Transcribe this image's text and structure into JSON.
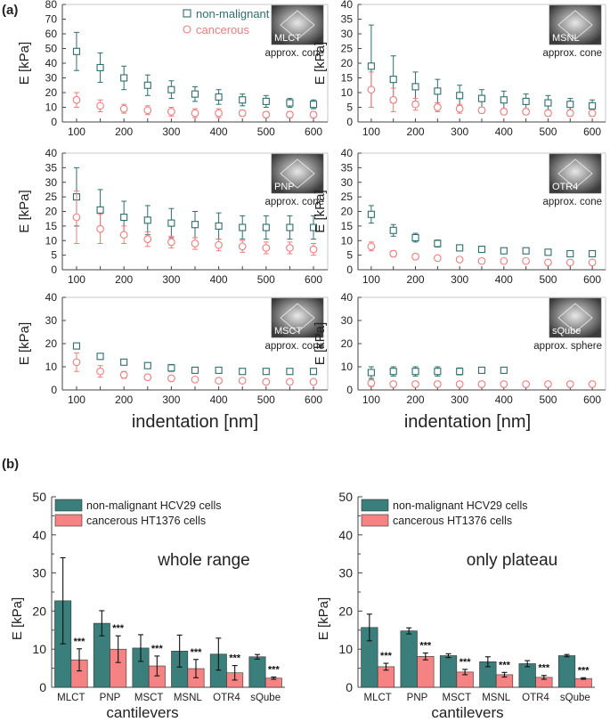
{
  "figure": {
    "label_a": "(a)",
    "label_b": "(b)",
    "xlabel_a": "indentation [nm]",
    "xlabel_b": "cantilevers",
    "ylabel": "E [kPa]",
    "legend_a": [
      "non-malignant",
      "cancerous"
    ],
    "legend_b": [
      "non-malignant HCV29 cells",
      "cancerous HT1376 cells"
    ],
    "sig_label": "***"
  },
  "colors": {
    "nonmalignant": "#2e6e6e",
    "cancerous": "#f07c7c",
    "bar_nonmalignant": "#3a7f7b",
    "bar_cancerous": "#f58383",
    "axis": "#444444",
    "text": "#222222"
  },
  "chart_data": [
    {
      "type": "scatter",
      "id": "MLCT",
      "tip": "MLCT",
      "shape": "approx. cone",
      "x": [
        100,
        150,
        200,
        250,
        300,
        350,
        400,
        450,
        500,
        550,
        600
      ],
      "ylim": [
        0,
        80
      ],
      "yticks": [
        0,
        10,
        20,
        30,
        40,
        50,
        60,
        70,
        80
      ],
      "series": [
        {
          "name": "non-malignant",
          "values": [
            48,
            37,
            30,
            25,
            22,
            19,
            17,
            15,
            14,
            13,
            12
          ],
          "err": [
            13,
            10,
            8,
            7,
            6,
            5,
            5,
            4,
            4,
            3,
            3
          ]
        },
        {
          "name": "cancerous",
          "values": [
            15,
            11,
            9,
            8,
            7,
            6,
            6,
            6,
            5,
            5,
            5
          ],
          "err": [
            5,
            4,
            3,
            3,
            3,
            3,
            3,
            2,
            2,
            2,
            2
          ]
        }
      ]
    },
    {
      "type": "scatter",
      "id": "MSNL",
      "tip": "MSNL",
      "shape": "approx. cone",
      "x": [
        100,
        150,
        200,
        250,
        300,
        350,
        400,
        450,
        500,
        550,
        600
      ],
      "ylim": [
        0,
        40
      ],
      "yticks": [
        0,
        5,
        10,
        15,
        20,
        25,
        30,
        35,
        40
      ],
      "series": [
        {
          "name": "non-malignant",
          "values": [
            19,
            14.5,
            12,
            10.5,
            9,
            8,
            7.5,
            7,
            6.5,
            6,
            5.5
          ],
          "err": [
            14,
            8,
            5,
            4,
            3.5,
            3,
            3,
            2.5,
            2.5,
            2,
            2
          ]
        },
        {
          "name": "cancerous",
          "values": [
            11,
            7.5,
            6,
            5,
            4.5,
            4,
            3.5,
            3.5,
            3,
            3,
            3
          ],
          "err": [
            6,
            4,
            2,
            1.5,
            1.5,
            1,
            1,
            1,
            1,
            1,
            1
          ]
        }
      ]
    },
    {
      "type": "scatter",
      "id": "PNP",
      "tip": "PNP",
      "shape": "approx. cone",
      "x": [
        100,
        150,
        200,
        250,
        300,
        350,
        400,
        450,
        500,
        550,
        600
      ],
      "ylim": [
        0,
        40
      ],
      "yticks": [
        0,
        5,
        10,
        15,
        20,
        25,
        30,
        35,
        40
      ],
      "series": [
        {
          "name": "non-malignant",
          "values": [
            25,
            20.5,
            18,
            17,
            16,
            15.5,
            15,
            14.5,
            14.5,
            14.5,
            14.5
          ],
          "err": [
            10,
            7,
            5.5,
            5,
            5,
            4.5,
            4.5,
            4,
            4,
            4,
            4
          ]
        },
        {
          "name": "cancerous",
          "values": [
            18,
            14,
            12,
            10.5,
            9.5,
            9,
            8.5,
            8,
            7.5,
            7.5,
            7
          ],
          "err": [
            9,
            5,
            3,
            2.5,
            2,
            2,
            2,
            2,
            2,
            2,
            2
          ]
        }
      ]
    },
    {
      "type": "scatter",
      "id": "OTR4",
      "tip": "OTR4",
      "shape": "approx. cone",
      "x": [
        100,
        150,
        200,
        250,
        300,
        350,
        400,
        450,
        500,
        550,
        600
      ],
      "ylim": [
        0,
        40
      ],
      "yticks": [
        0,
        5,
        10,
        15,
        20,
        25,
        30,
        35,
        40
      ],
      "series": [
        {
          "name": "non-malignant",
          "values": [
            19,
            13.5,
            11,
            9,
            7.5,
            7,
            6.5,
            6.5,
            6,
            5.5,
            5.5
          ],
          "err": [
            3,
            2,
            1.5,
            1.2,
            1,
            1,
            0.8,
            0.8,
            0.7,
            0.7,
            0.7
          ]
        },
        {
          "name": "cancerous",
          "values": [
            8,
            5.5,
            4.5,
            4,
            3.5,
            3,
            3,
            3,
            2.5,
            2.5,
            2.5
          ],
          "err": [
            1.5,
            1,
            0.8,
            0.6,
            0.5,
            0.5,
            0.5,
            0.5,
            0.5,
            0.5,
            0.5
          ]
        }
      ]
    },
    {
      "type": "scatter",
      "id": "MSCT",
      "tip": "MSCT",
      "shape": "approx. cone",
      "x": [
        100,
        150,
        200,
        250,
        300,
        350,
        400,
        450,
        500,
        550,
        600
      ],
      "ylim": [
        0,
        40
      ],
      "yticks": [
        0,
        10,
        20,
        30,
        40
      ],
      "series": [
        {
          "name": "non-malignant",
          "values": [
            19,
            14.5,
            12,
            10.5,
            9.5,
            8.5,
            8.5,
            8,
            8,
            8,
            8
          ],
          "err": [
            0.8,
            0.7,
            0.7,
            0.6,
            1.5,
            0.5,
            0.5,
            0.5,
            0.5,
            0.5,
            0.5
          ]
        },
        {
          "name": "cancerous",
          "values": [
            12,
            8,
            6.5,
            5.5,
            5,
            4.5,
            4,
            4,
            3.5,
            3.5,
            3.5
          ],
          "err": [
            4,
            2.5,
            1.5,
            1.2,
            1,
            0.8,
            0.7,
            0.6,
            0.5,
            0.5,
            0.5
          ]
        }
      ]
    },
    {
      "type": "scatter",
      "id": "sQube",
      "tip": "sQube",
      "shape": "approx. sphere",
      "x": [
        100,
        150,
        200,
        250,
        300,
        350,
        400,
        450,
        500,
        550,
        600
      ],
      "ylim": [
        0,
        40
      ],
      "yticks": [
        0,
        10,
        20,
        30,
        40
      ],
      "series": [
        {
          "name": "non-malignant",
          "values": [
            7.5,
            8,
            8,
            8,
            8,
            8.5,
            8.5,
            null,
            null,
            null,
            null
          ],
          "err": [
            2.5,
            2,
            2,
            2,
            1.5,
            1,
            0.5,
            null,
            null,
            null,
            null
          ]
        },
        {
          "name": "cancerous",
          "values": [
            3,
            2.5,
            2.5,
            2.5,
            2.5,
            2.5,
            2.5,
            2.5,
            2.5,
            2.5,
            2.5
          ],
          "err": [
            1.5,
            1,
            0.8,
            0.7,
            0.6,
            0.5,
            0.5,
            0.5,
            0.5,
            0.5,
            0.5
          ]
        }
      ]
    },
    {
      "type": "bar",
      "id": "whole",
      "title": "whole range",
      "categories": [
        "MLCT",
        "PNP",
        "MSCT",
        "MSNL",
        "OTR4",
        "sQube"
      ],
      "ylim": [
        0,
        50
      ],
      "yticks": [
        0,
        10,
        20,
        30,
        40,
        50
      ],
      "series": [
        {
          "name": "non-malignant HCV29 cells",
          "values": [
            22.7,
            16.8,
            10.3,
            9.5,
            8.7,
            8.0
          ],
          "err": [
            11.3,
            3.3,
            3.5,
            4.2,
            4.2,
            0.6
          ]
        },
        {
          "name": "cancerous HT1376 cells",
          "values": [
            7.2,
            10.0,
            5.6,
            4.9,
            3.8,
            2.4
          ],
          "err": [
            2.9,
            3.5,
            2.6,
            2.4,
            1.9,
            0.3
          ]
        }
      ],
      "significance": [
        "***",
        "***",
        "***",
        "***",
        "***",
        "***"
      ]
    },
    {
      "type": "bar",
      "id": "plateau",
      "title": "only plateau",
      "categories": [
        "MLCT",
        "PNP",
        "MSCT",
        "MSNL",
        "OTR4",
        "sQube"
      ],
      "ylim": [
        0,
        50
      ],
      "yticks": [
        0,
        10,
        20,
        30,
        40,
        50
      ],
      "series": [
        {
          "name": "non-malignant HCV29 cells",
          "values": [
            15.7,
            14.8,
            8.3,
            6.7,
            6.2,
            8.3
          ],
          "err": [
            3.5,
            0.8,
            0.5,
            1.3,
            0.8,
            0.3
          ]
        },
        {
          "name": "cancerous HT1376 cells",
          "values": [
            5.4,
            8.1,
            4.0,
            3.3,
            2.6,
            2.3
          ],
          "err": [
            0.9,
            0.9,
            0.7,
            0.6,
            0.5,
            0.2
          ]
        }
      ],
      "significance": [
        "***",
        "***",
        "***",
        "***",
        "***",
        "***"
      ]
    }
  ]
}
